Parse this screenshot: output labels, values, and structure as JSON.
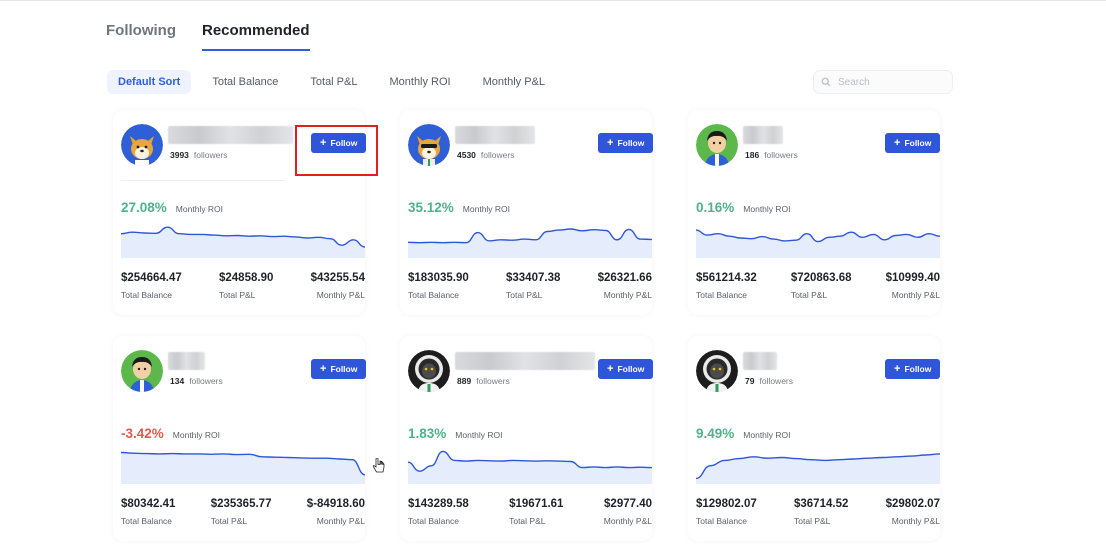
{
  "tabs": [
    {
      "label": "Following",
      "active": false
    },
    {
      "label": "Recommended",
      "active": true
    }
  ],
  "sort_options": [
    {
      "label": "Default Sort",
      "active": true
    },
    {
      "label": "Total Balance",
      "active": false
    },
    {
      "label": "Total P&L",
      "active": false
    },
    {
      "label": "Monthly ROI",
      "active": false
    },
    {
      "label": "Monthly P&L",
      "active": false
    }
  ],
  "search": {
    "placeholder": "Search",
    "icon": "search-icon"
  },
  "follow_label": "Follow",
  "followers_label": "followers",
  "roi_label": "Monthly ROI",
  "stat_labels": {
    "balance": "Total Balance",
    "pnl": "Total P&L",
    "monthly_pnl": "Monthly P&L"
  },
  "colors": {
    "accent": "#2f56d9",
    "positive": "#4fb38a",
    "negative": "#e05a4e",
    "highlight": "#e02020"
  },
  "traders": [
    {
      "avatar": "shiba-avatar",
      "followers": "3993",
      "roi": "27.08%",
      "roi_negative": false,
      "total_balance": "$254664.47",
      "total_pnl": "$24858.90",
      "monthly_pnl": "$43255.54",
      "trend": [
        0.62,
        0.66,
        0.64,
        0.63,
        0.8,
        0.62,
        0.6,
        0.6,
        0.58,
        0.56,
        0.57,
        0.55,
        0.56,
        0.54,
        0.55,
        0.53,
        0.5,
        0.52,
        0.48,
        0.3,
        0.45,
        0.25
      ]
    },
    {
      "avatar": "shiba-sunglasses-avatar",
      "followers": "4530",
      "roi": "35.12%",
      "roi_negative": false,
      "total_balance": "$183035.90",
      "total_pnl": "$33407.38",
      "monthly_pnl": "$26321.66",
      "trend": [
        0.38,
        0.37,
        0.38,
        0.37,
        0.38,
        0.37,
        0.65,
        0.42,
        0.45,
        0.44,
        0.47,
        0.45,
        0.68,
        0.72,
        0.75,
        0.7,
        0.73,
        0.71,
        0.45,
        0.74,
        0.47,
        0.46
      ]
    },
    {
      "avatar": "green-boy-avatar",
      "followers": "186",
      "roi": "0.16%",
      "roi_negative": false,
      "total_balance": "$561214.32",
      "total_pnl": "$720863.68",
      "monthly_pnl": "$10999.40",
      "trend": [
        0.72,
        0.58,
        0.62,
        0.55,
        0.5,
        0.48,
        0.54,
        0.47,
        0.42,
        0.44,
        0.62,
        0.4,
        0.52,
        0.55,
        0.66,
        0.52,
        0.6,
        0.45,
        0.57,
        0.6,
        0.52,
        0.62,
        0.55
      ]
    },
    {
      "avatar": "green-boy-avatar",
      "followers": "134",
      "roi": "-3.42%",
      "roi_negative": true,
      "total_balance": "$80342.41",
      "total_pnl": "$235365.77",
      "monthly_pnl": "$-84918.60",
      "trend": [
        0.82,
        0.8,
        0.79,
        0.78,
        0.79,
        0.78,
        0.78,
        0.77,
        0.78,
        0.76,
        0.77,
        0.7,
        0.69,
        0.68,
        0.67,
        0.66,
        0.66,
        0.64,
        0.62,
        0.2
      ]
    },
    {
      "avatar": "astronaut-avatar",
      "followers": "889",
      "roi": "1.83%",
      "roi_negative": false,
      "total_balance": "$143289.58",
      "total_pnl": "$19671.61",
      "monthly_pnl": "$2977.40",
      "trend": [
        0.55,
        0.3,
        0.45,
        0.85,
        0.6,
        0.58,
        0.6,
        0.59,
        0.58,
        0.6,
        0.59,
        0.58,
        0.59,
        0.58,
        0.57,
        0.4,
        0.42,
        0.4,
        0.42,
        0.4,
        0.41,
        0.4
      ]
    },
    {
      "avatar": "astronaut-avatar",
      "followers": "79",
      "roi": "9.49%",
      "roi_negative": false,
      "total_balance": "$129802.07",
      "total_pnl": "$36714.52",
      "monthly_pnl": "$29802.07",
      "trend": [
        0.1,
        0.45,
        0.6,
        0.65,
        0.7,
        0.66,
        0.68,
        0.65,
        0.62,
        0.6,
        0.62,
        0.64,
        0.66,
        0.68,
        0.7,
        0.72,
        0.75,
        0.78
      ]
    }
  ]
}
